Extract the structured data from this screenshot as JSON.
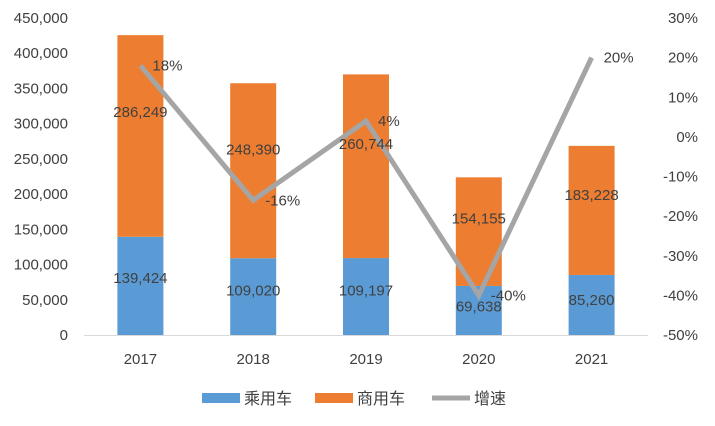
{
  "chart_data": {
    "type": "bar",
    "stacked": true,
    "categories": [
      "2017",
      "2018",
      "2019",
      "2020",
      "2021"
    ],
    "series": [
      {
        "name": "乘用车",
        "type": "bar",
        "axis": "left",
        "color": "#5b9bd5",
        "values": [
          139424,
          109020,
          109197,
          69638,
          85260
        ],
        "labels": [
          "139,424",
          "109,020",
          "109,197",
          "69,638",
          "85,260"
        ]
      },
      {
        "name": "商用车",
        "type": "bar",
        "axis": "left",
        "color": "#ed7d31",
        "values": [
          286249,
          248390,
          260744,
          154155,
          183228
        ],
        "labels": [
          "286,249",
          "248,390",
          "260,744",
          "154,155",
          "183,228"
        ]
      },
      {
        "name": "增速",
        "type": "line",
        "axis": "right",
        "color": "#a5a5a5",
        "values": [
          18,
          -16,
          4,
          -40,
          20
        ],
        "labels": [
          "18%",
          "-16%",
          "4%",
          "-40%",
          "20%"
        ]
      }
    ],
    "y_left": {
      "ylim": [
        0,
        450000
      ],
      "ticks": [
        "0",
        "50,000",
        "100,000",
        "150,000",
        "200,000",
        "250,000",
        "300,000",
        "350,000",
        "400,000",
        "450,000"
      ]
    },
    "y_right": {
      "ylim": [
        -50,
        30
      ],
      "ticks": [
        "-50%",
        "-40%",
        "-30%",
        "-20%",
        "-10%",
        "0%",
        "10%",
        "20%",
        "30%"
      ]
    },
    "grid": false,
    "legend": "bottom"
  }
}
